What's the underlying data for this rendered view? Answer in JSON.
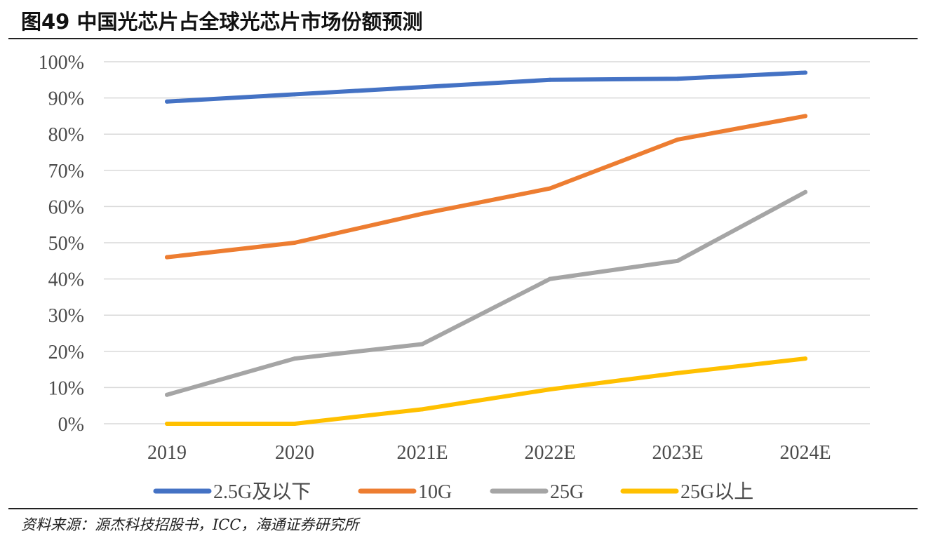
{
  "header": {
    "title": "图49 中国光芯片占全球光芯片市场份额预测"
  },
  "footer": {
    "source": "资料来源：源杰科技招股书，ICC，海通证券研究所"
  },
  "chart_data": {
    "type": "line",
    "title": "",
    "xlabel": "",
    "ylabel": "",
    "categories": [
      "2019",
      "2020",
      "2021E",
      "2022E",
      "2023E",
      "2024E"
    ],
    "ylim": [
      0,
      100
    ],
    "y_ticks": [
      0,
      10,
      20,
      30,
      40,
      50,
      60,
      70,
      80,
      90,
      100
    ],
    "y_tick_labels": [
      "0%",
      "10%",
      "20%",
      "30%",
      "40%",
      "50%",
      "60%",
      "70%",
      "80%",
      "90%",
      "100%"
    ],
    "grid": true,
    "legend_position": "bottom",
    "series": [
      {
        "name": "2.5G及以下",
        "color": "#4472C4",
        "values": [
          89,
          91,
          93,
          95,
          95.3,
          97
        ]
      },
      {
        "name": "10G",
        "color": "#ED7D31",
        "values": [
          46,
          50,
          58,
          65,
          78.5,
          85
        ]
      },
      {
        "name": "25G",
        "color": "#A5A5A5",
        "values": [
          8,
          18,
          22,
          40,
          45,
          64
        ]
      },
      {
        "name": "25G以上",
        "color": "#FFC000",
        "values": [
          0,
          0,
          4,
          9.5,
          14,
          18
        ]
      }
    ]
  }
}
